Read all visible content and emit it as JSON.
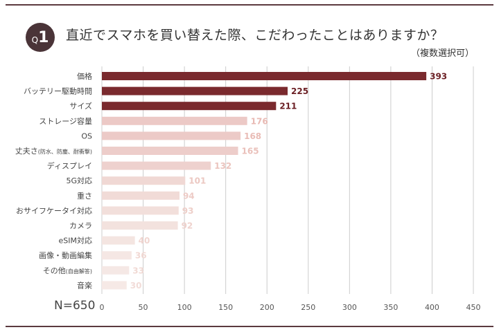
{
  "header": {
    "badge_q": "Q",
    "badge_num": "1",
    "title": "直近でスマホを買い替えた際、こだわったことはありますか？",
    "subtitle": "（複数選択可）"
  },
  "footer": {
    "n_label": "N=650"
  },
  "colors": {
    "rule": "#5b3a3f",
    "badge": "#4a3438",
    "bar_top": "#7a2a2e",
    "value_top": "#6b1f24",
    "bar_light": [
      "#ecc9c6",
      "#eccac7",
      "#edcdca",
      "#eed1ce",
      "#f0d8d4",
      "#f1dbd7",
      "#f2dfdb",
      "#f3e2de",
      "#f4e5e1",
      "#f5e7e4",
      "#f5e8e5",
      "#f6e9e6"
    ],
    "value_light": [
      "#e8b9b3",
      "#e9bcb6",
      "#eac0ba",
      "#ebc4be",
      "#ecc8c2",
      "#edcbc6",
      "#eecfc9",
      "#efd2cd",
      "#f0d5d0",
      "#f1d8d3",
      "#f1dad5",
      "#f2dcd8"
    ],
    "grid": "#cccccc"
  },
  "chart_data": {
    "type": "bar",
    "orientation": "horizontal",
    "categories": [
      {
        "label": "価格",
        "sub": ""
      },
      {
        "label": "バッテリー駆動時間",
        "sub": ""
      },
      {
        "label": "サイズ",
        "sub": ""
      },
      {
        "label": "ストレージ容量",
        "sub": ""
      },
      {
        "label": "OS",
        "sub": ""
      },
      {
        "label": "丈夫さ",
        "sub": "(防水、防塵、耐衝撃)"
      },
      {
        "label": "ディスプレイ",
        "sub": ""
      },
      {
        "label": "5G対応",
        "sub": ""
      },
      {
        "label": "重さ",
        "sub": ""
      },
      {
        "label": "おサイフケータイ対応",
        "sub": ""
      },
      {
        "label": "カメラ",
        "sub": ""
      },
      {
        "label": "eSIM対応",
        "sub": ""
      },
      {
        "label": "画像・動画編集",
        "sub": ""
      },
      {
        "label": "その他",
        "sub": "(自由解答)"
      },
      {
        "label": "音楽",
        "sub": ""
      }
    ],
    "values": [
      393,
      225,
      211,
      176,
      168,
      165,
      132,
      101,
      94,
      93,
      92,
      40,
      36,
      33,
      30
    ],
    "xlim": [
      0,
      450
    ],
    "xticks": [
      "0",
      "50",
      "100",
      "150",
      "200",
      "250",
      "300",
      "350",
      "400",
      "450"
    ],
    "grid": true,
    "highlight_top": 3
  }
}
